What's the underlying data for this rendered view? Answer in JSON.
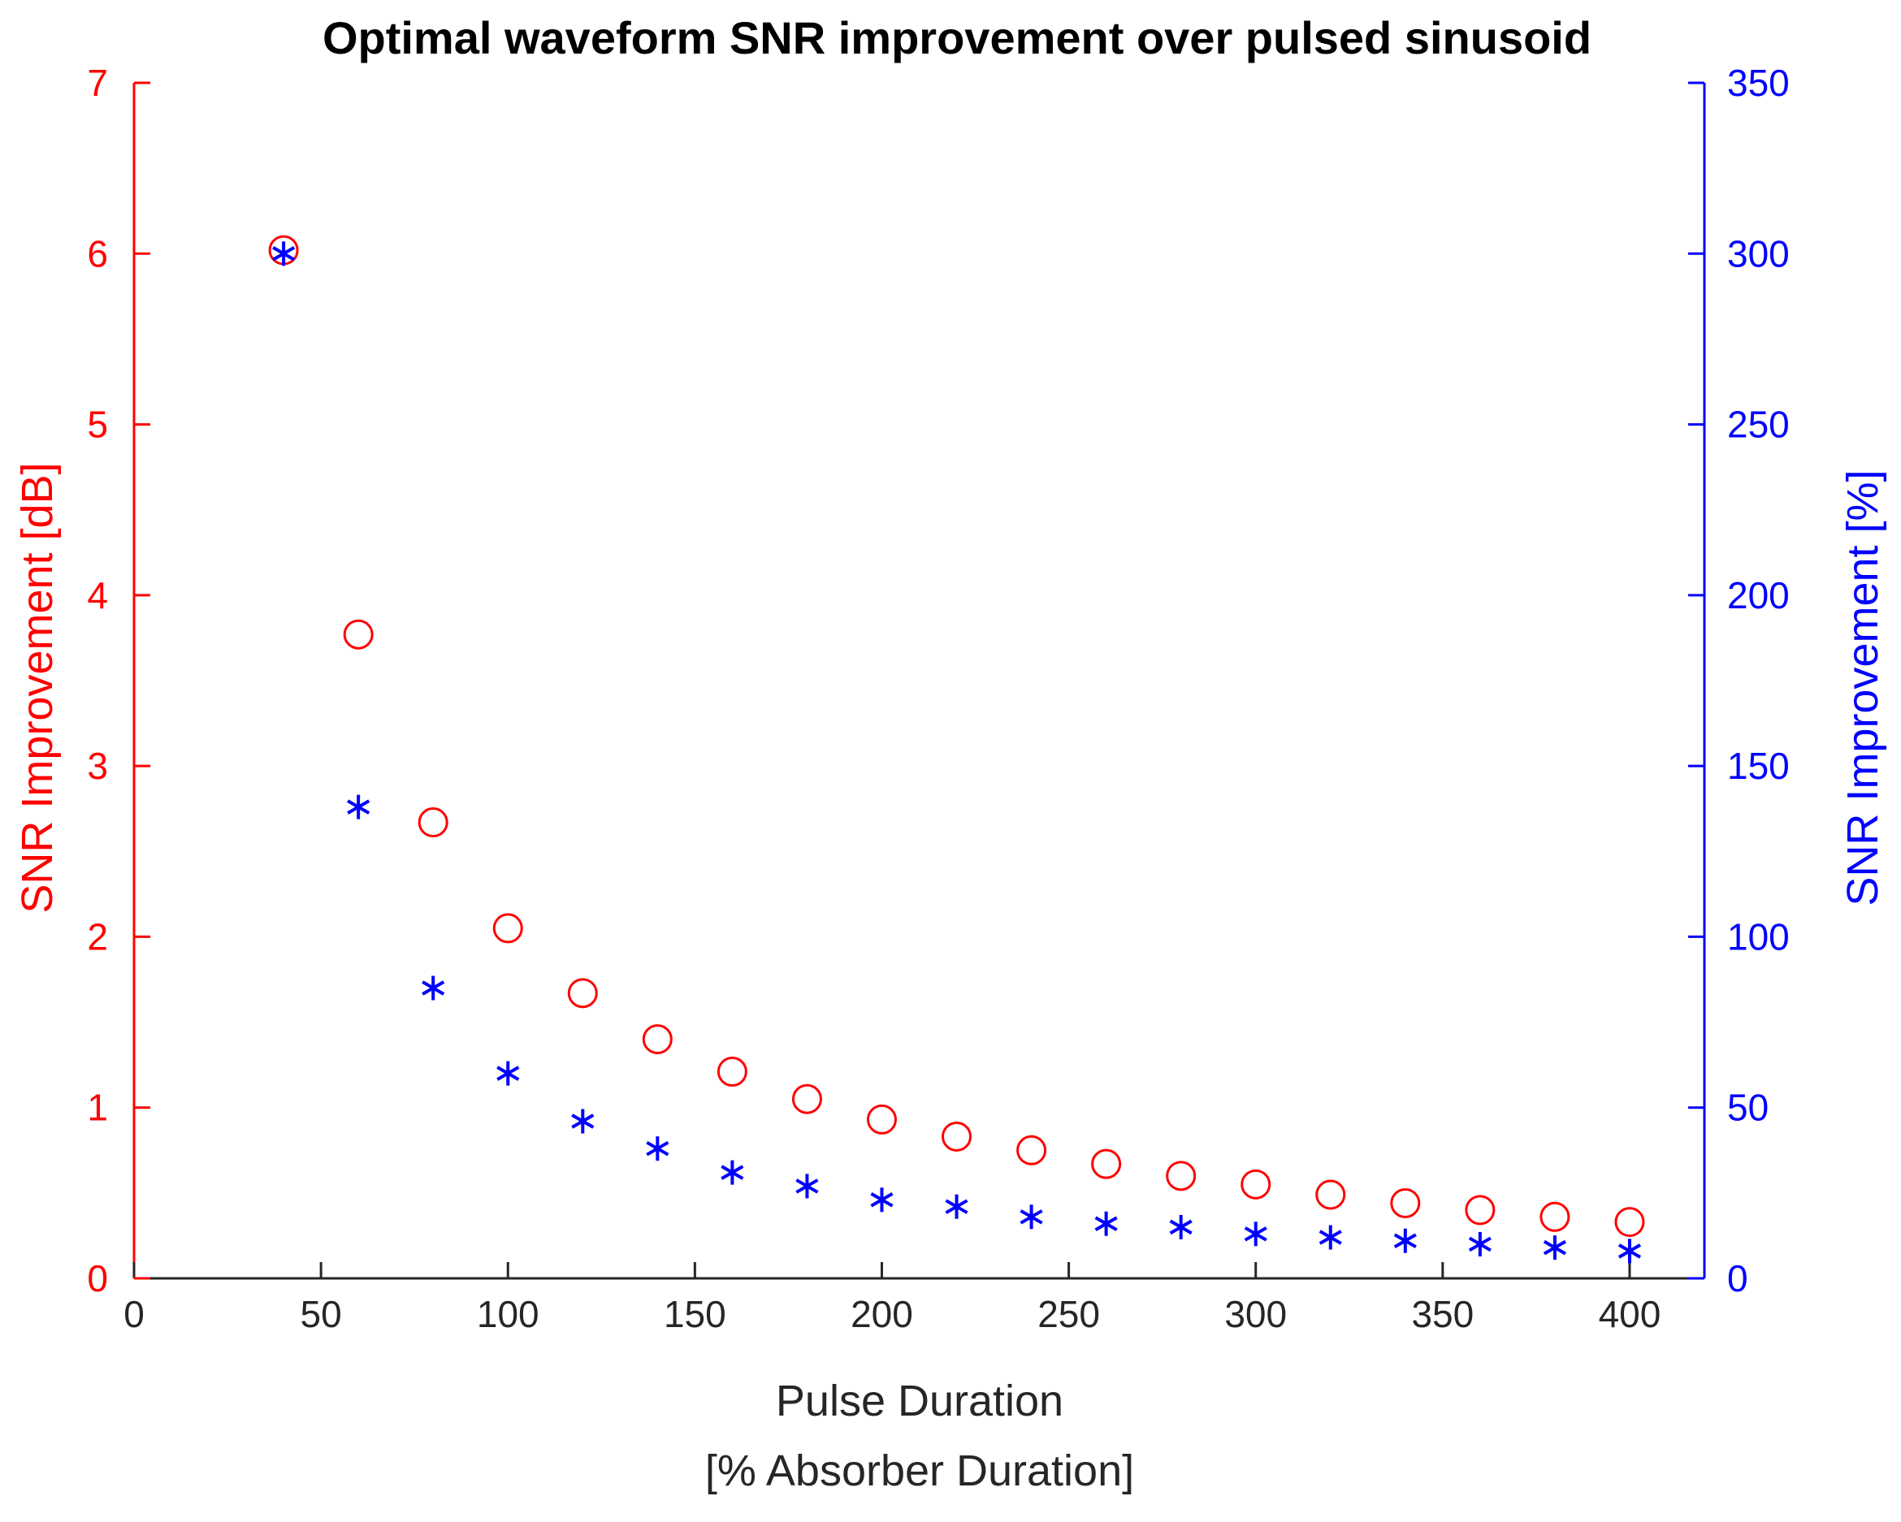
{
  "chart_data": {
    "type": "scatter",
    "title": "Optimal waveform SNR improvement over pulsed sinusoid",
    "xlabel": "Pulse Duration",
    "xlabel2": "[% Absorber Duration]",
    "ylabel_left": "SNR Improvement [dB]",
    "ylabel_right": "SNR Improvement [%]",
    "xlim": [
      0,
      420
    ],
    "ylim_left": [
      0,
      7
    ],
    "ylim_right": [
      0,
      350
    ],
    "xticks": [
      0,
      50,
      100,
      150,
      200,
      250,
      300,
      350,
      400
    ],
    "yticks_left": [
      0,
      1,
      2,
      3,
      4,
      5,
      6,
      7
    ],
    "yticks_right": [
      0,
      50,
      100,
      150,
      200,
      250,
      300,
      350
    ],
    "x": [
      40,
      60,
      80,
      100,
      120,
      140,
      160,
      180,
      200,
      220,
      240,
      260,
      280,
      300,
      320,
      340,
      360,
      380,
      400
    ],
    "series": [
      {
        "name": "SNR Improvement [dB]",
        "axis": "left",
        "marker": "circle",
        "color": "#ff0000",
        "values": [
          6.02,
          3.77,
          2.67,
          2.05,
          1.67,
          1.4,
          1.21,
          1.05,
          0.93,
          0.83,
          0.75,
          0.67,
          0.6,
          0.55,
          0.49,
          0.44,
          0.4,
          0.36,
          0.33
        ]
      },
      {
        "name": "SNR Improvement [%]",
        "axis": "right",
        "marker": "asterisk",
        "color": "#0000ff",
        "values": [
          300,
          138,
          85,
          60,
          46,
          38,
          31,
          27,
          23,
          21,
          18,
          16,
          15,
          13,
          12,
          11,
          10,
          9,
          8
        ]
      }
    ],
    "colors": {
      "left_axis": "#ff0000",
      "right_axis": "#0000ff",
      "bottom_axis": "#262626"
    }
  }
}
